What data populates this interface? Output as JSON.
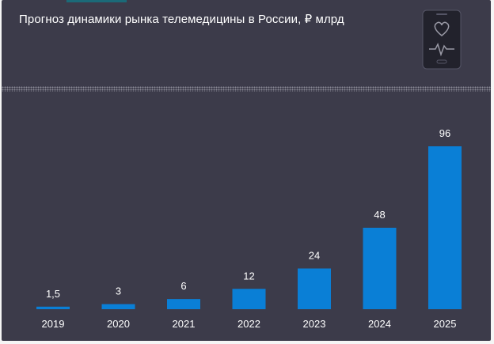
{
  "header": {
    "title": "Прогноз динамики рынка телемедицины в России, ₽ млрд",
    "icon": "phone-heartbeat-icon"
  },
  "colors": {
    "background": "#3c3b4a",
    "bar": "#0a7fd6",
    "text": "#ffffff"
  },
  "chart_data": {
    "type": "bar",
    "title": "Прогноз динамики рынка телемедицины в России, ₽ млрд",
    "categories": [
      "2019",
      "2020",
      "2021",
      "2022",
      "2023",
      "2024",
      "2025"
    ],
    "values": [
      1.5,
      3,
      6,
      12,
      24,
      48,
      96
    ],
    "value_labels": [
      "1,5",
      "3",
      "6",
      "12",
      "24",
      "48",
      "96"
    ],
    "ylim": [
      0,
      96
    ],
    "grid": false,
    "legend": "none"
  }
}
